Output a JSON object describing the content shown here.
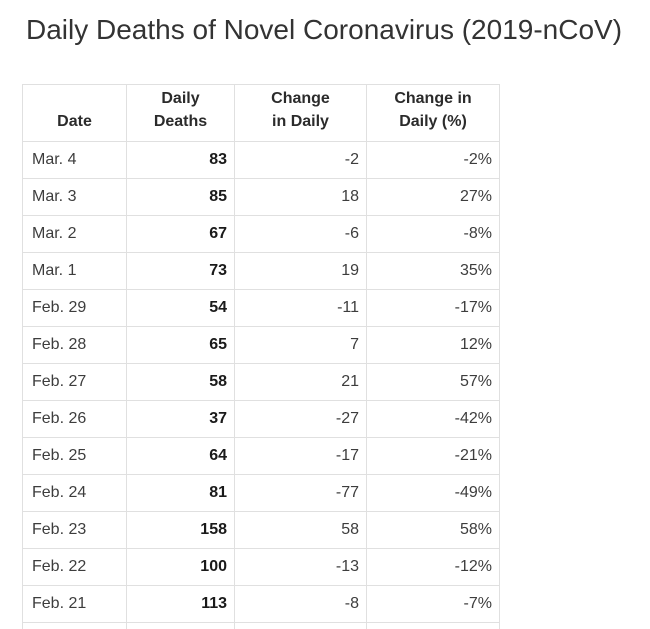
{
  "page": {
    "title": "Daily Deaths of Novel Coronavirus (2019-nCoV)"
  },
  "colors": {
    "background": "#ffffff",
    "table_border": "#e0e0e0",
    "title_text": "#333333",
    "header_text": "#2b2b2b",
    "body_text": "#3d3d3d",
    "emphasis_text": "#1a1a1a"
  },
  "table": {
    "columns": [
      {
        "label": "Date",
        "lines": [
          "Date"
        ]
      },
      {
        "label": "Daily Deaths",
        "lines": [
          "Daily",
          "Deaths"
        ]
      },
      {
        "label": "Change in Daily",
        "lines": [
          "Change",
          "in Daily"
        ]
      },
      {
        "label": "Change in Daily (%)",
        "lines": [
          "Change in",
          "Daily (%)"
        ]
      }
    ],
    "rows": [
      {
        "date": "Mar. 4",
        "daily_deaths": "83",
        "change_in_daily": "-2",
        "change_in_daily_pct": "-2%"
      },
      {
        "date": "Mar. 3",
        "daily_deaths": "85",
        "change_in_daily": "18",
        "change_in_daily_pct": "27%"
      },
      {
        "date": "Mar. 2",
        "daily_deaths": "67",
        "change_in_daily": "-6",
        "change_in_daily_pct": "-8%"
      },
      {
        "date": "Mar. 1",
        "daily_deaths": "73",
        "change_in_daily": "19",
        "change_in_daily_pct": "35%"
      },
      {
        "date": "Feb. 29",
        "daily_deaths": "54",
        "change_in_daily": "-11",
        "change_in_daily_pct": "-17%"
      },
      {
        "date": "Feb. 28",
        "daily_deaths": "65",
        "change_in_daily": "7",
        "change_in_daily_pct": "12%"
      },
      {
        "date": "Feb. 27",
        "daily_deaths": "58",
        "change_in_daily": "21",
        "change_in_daily_pct": "57%"
      },
      {
        "date": "Feb. 26",
        "daily_deaths": "37",
        "change_in_daily": "-27",
        "change_in_daily_pct": "-42%"
      },
      {
        "date": "Feb. 25",
        "daily_deaths": "64",
        "change_in_daily": "-17",
        "change_in_daily_pct": "-21%"
      },
      {
        "date": "Feb. 24",
        "daily_deaths": "81",
        "change_in_daily": "-77",
        "change_in_daily_pct": "-49%"
      },
      {
        "date": "Feb. 23",
        "daily_deaths": "158",
        "change_in_daily": "58",
        "change_in_daily_pct": "58%"
      },
      {
        "date": "Feb. 22",
        "daily_deaths": "100",
        "change_in_daily": "-13",
        "change_in_daily_pct": "-12%"
      },
      {
        "date": "Feb. 21",
        "daily_deaths": "113",
        "change_in_daily": "-8",
        "change_in_daily_pct": "-7%"
      }
    ]
  },
  "chart_data": {
    "type": "table",
    "title": "Daily Deaths of Novel Coronavirus (2019-nCoV)",
    "columns": [
      "Date",
      "Daily Deaths",
      "Change in Daily",
      "Change in Daily (%)"
    ],
    "rows": [
      [
        "Mar. 4",
        83,
        -2,
        -2
      ],
      [
        "Mar. 3",
        85,
        18,
        27
      ],
      [
        "Mar. 2",
        67,
        -6,
        -8
      ],
      [
        "Mar. 1",
        73,
        19,
        35
      ],
      [
        "Feb. 29",
        54,
        -11,
        -17
      ],
      [
        "Feb. 28",
        65,
        7,
        12
      ],
      [
        "Feb. 27",
        58,
        21,
        57
      ],
      [
        "Feb. 26",
        37,
        -27,
        -42
      ],
      [
        "Feb. 25",
        64,
        -17,
        -21
      ],
      [
        "Feb. 24",
        81,
        -77,
        -49
      ],
      [
        "Feb. 23",
        158,
        58,
        58
      ],
      [
        "Feb. 22",
        100,
        -13,
        -12
      ],
      [
        "Feb. 21",
        113,
        -8,
        -7
      ]
    ],
    "notes": "Change in Daily (%) values are percentages; table continues below the visible viewport (partial 14th row visible)."
  }
}
